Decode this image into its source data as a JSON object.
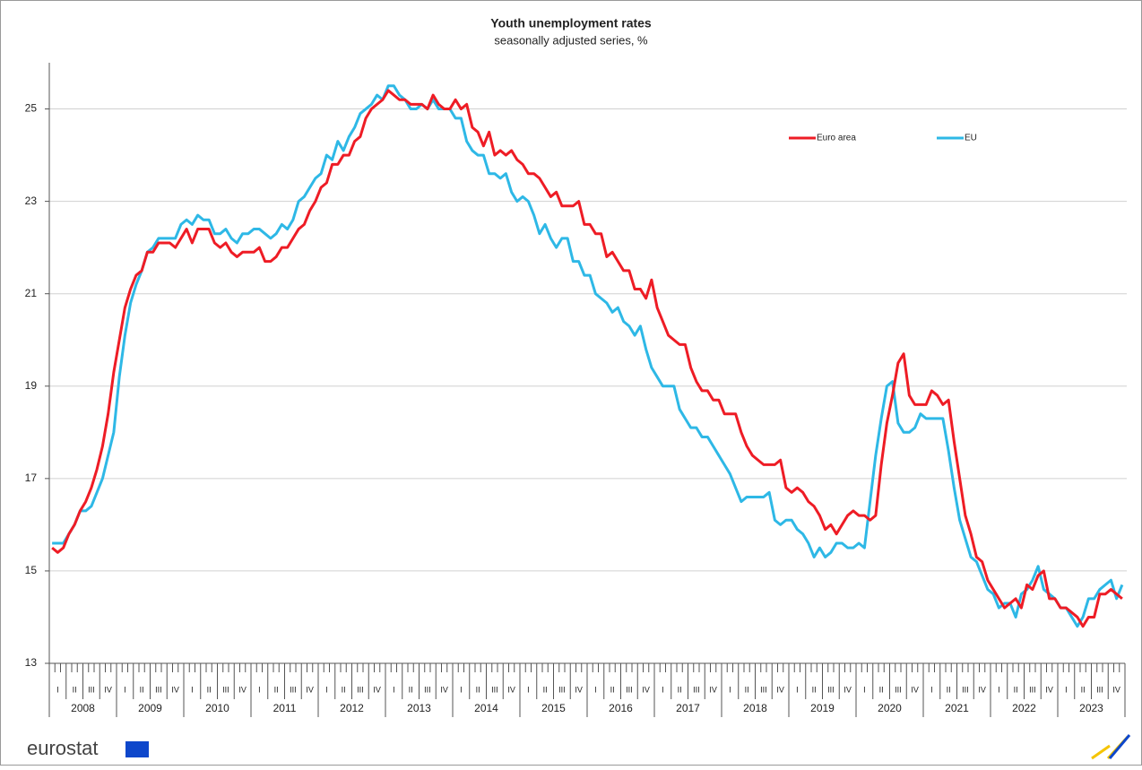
{
  "chart_data": {
    "type": "line",
    "title": "Youth unemployment rates",
    "subtitle": "seasonally adjusted series, %",
    "years": [
      "2008",
      "2009",
      "2010",
      "2011",
      "2012",
      "2013",
      "2014",
      "2015",
      "2016",
      "2017",
      "2018",
      "2019",
      "2020",
      "2021",
      "2022",
      "2023"
    ],
    "quarters": [
      "I",
      "II",
      "III",
      "IV"
    ],
    "ylim": [
      13,
      26
    ],
    "yticks": [
      13,
      15,
      17,
      19,
      21,
      23,
      25
    ],
    "grid": true,
    "legend": "upper right",
    "series": [
      {
        "name": "Euro area",
        "color": "#ee1c25",
        "values": [
          15.5,
          15.4,
          15.5,
          15.8,
          16.0,
          16.3,
          16.5,
          16.8,
          17.2,
          17.7,
          18.4,
          19.3,
          20.0,
          20.7,
          21.1,
          21.4,
          21.5,
          21.9,
          21.9,
          22.1,
          22.1,
          22.1,
          22.0,
          22.2,
          22.4,
          22.1,
          22.4,
          22.4,
          22.4,
          22.1,
          22.0,
          22.1,
          21.9,
          21.8,
          21.9,
          21.9,
          21.9,
          22.0,
          21.7,
          21.7,
          21.8,
          22.0,
          22.0,
          22.2,
          22.4,
          22.5,
          22.8,
          23.0,
          23.3,
          23.4,
          23.8,
          23.8,
          24.0,
          24.0,
          24.3,
          24.4,
          24.8,
          25.0,
          25.1,
          25.2,
          25.4,
          25.3,
          25.2,
          25.2,
          25.1,
          25.1,
          25.1,
          25.0,
          25.3,
          25.1,
          25.0,
          25.0,
          25.2,
          25.0,
          25.1,
          24.6,
          24.5,
          24.2,
          24.5,
          24.0,
          24.1,
          24.0,
          24.1,
          23.9,
          23.8,
          23.6,
          23.6,
          23.5,
          23.3,
          23.1,
          23.2,
          22.9,
          22.9,
          22.9,
          23.0,
          22.5,
          22.5,
          22.3,
          22.3,
          21.8,
          21.9,
          21.7,
          21.5,
          21.5,
          21.1,
          21.1,
          20.9,
          21.3,
          20.7,
          20.4,
          20.1,
          20.0,
          19.9,
          19.9,
          19.4,
          19.1,
          18.9,
          18.9,
          18.7,
          18.7,
          18.4,
          18.4,
          18.4,
          18.0,
          17.7,
          17.5,
          17.4,
          17.3,
          17.3,
          17.3,
          17.4,
          16.8,
          16.7,
          16.8,
          16.7,
          16.5,
          16.4,
          16.2,
          15.9,
          16.0,
          15.8,
          16.0,
          16.2,
          16.3,
          16.2,
          16.2,
          16.1,
          16.2,
          17.3,
          18.2,
          18.8,
          19.5,
          19.7,
          18.8,
          18.6,
          18.6,
          18.6,
          18.9,
          18.8,
          18.6,
          18.7,
          17.8,
          17.0,
          16.2,
          15.8,
          15.3,
          15.2,
          14.8,
          14.6,
          14.4,
          14.2,
          14.3,
          14.4,
          14.2,
          14.7,
          14.6,
          14.9,
          15.0,
          14.4,
          14.4,
          14.2,
          14.2,
          14.1,
          14.0,
          13.8,
          14.0,
          14.0,
          14.5,
          14.5,
          14.6,
          14.5,
          14.4
        ]
      },
      {
        "name": "EU",
        "color": "#2eb8e6",
        "values": [
          15.6,
          15.6,
          15.6,
          15.8,
          16.0,
          16.3,
          16.3,
          16.4,
          16.7,
          17.0,
          17.5,
          18.0,
          19.2,
          20.1,
          20.8,
          21.2,
          21.5,
          21.9,
          22.0,
          22.2,
          22.2,
          22.2,
          22.2,
          22.5,
          22.6,
          22.5,
          22.7,
          22.6,
          22.6,
          22.3,
          22.3,
          22.4,
          22.2,
          22.1,
          22.3,
          22.3,
          22.4,
          22.4,
          22.3,
          22.2,
          22.3,
          22.5,
          22.4,
          22.6,
          23.0,
          23.1,
          23.3,
          23.5,
          23.6,
          24.0,
          23.9,
          24.3,
          24.1,
          24.4,
          24.6,
          24.9,
          25.0,
          25.1,
          25.3,
          25.2,
          25.5,
          25.5,
          25.3,
          25.2,
          25.0,
          25.0,
          25.1,
          25.0,
          25.2,
          25.0,
          25.0,
          25.0,
          24.8,
          24.8,
          24.3,
          24.1,
          24.0,
          24.0,
          23.6,
          23.6,
          23.5,
          23.6,
          23.2,
          23.0,
          23.1,
          23.0,
          22.7,
          22.3,
          22.5,
          22.2,
          22.0,
          22.2,
          22.2,
          21.7,
          21.7,
          21.4,
          21.4,
          21.0,
          20.9,
          20.8,
          20.6,
          20.7,
          20.4,
          20.3,
          20.1,
          20.3,
          19.8,
          19.4,
          19.2,
          19.0,
          19.0,
          19.0,
          18.5,
          18.3,
          18.1,
          18.1,
          17.9,
          17.9,
          17.7,
          17.5,
          17.3,
          17.1,
          16.8,
          16.5,
          16.6,
          16.6,
          16.6,
          16.6,
          16.7,
          16.1,
          16.0,
          16.1,
          16.1,
          15.9,
          15.8,
          15.6,
          15.3,
          15.5,
          15.3,
          15.4,
          15.6,
          15.6,
          15.5,
          15.5,
          15.6,
          15.5,
          16.5,
          17.5,
          18.3,
          19.0,
          19.1,
          18.2,
          18.0,
          18.0,
          18.1,
          18.4,
          18.3,
          18.3,
          18.3,
          18.3,
          17.6,
          16.8,
          16.1,
          15.7,
          15.3,
          15.2,
          14.9,
          14.6,
          14.5,
          14.2,
          14.3,
          14.3,
          14.0,
          14.5,
          14.6,
          14.8,
          15.1,
          14.6,
          14.5,
          14.4,
          14.2,
          14.2,
          14.0,
          13.8,
          14.0,
          14.4,
          14.4,
          14.6,
          14.7,
          14.8,
          14.4,
          14.7
        ]
      }
    ]
  },
  "logo": "eurostat"
}
